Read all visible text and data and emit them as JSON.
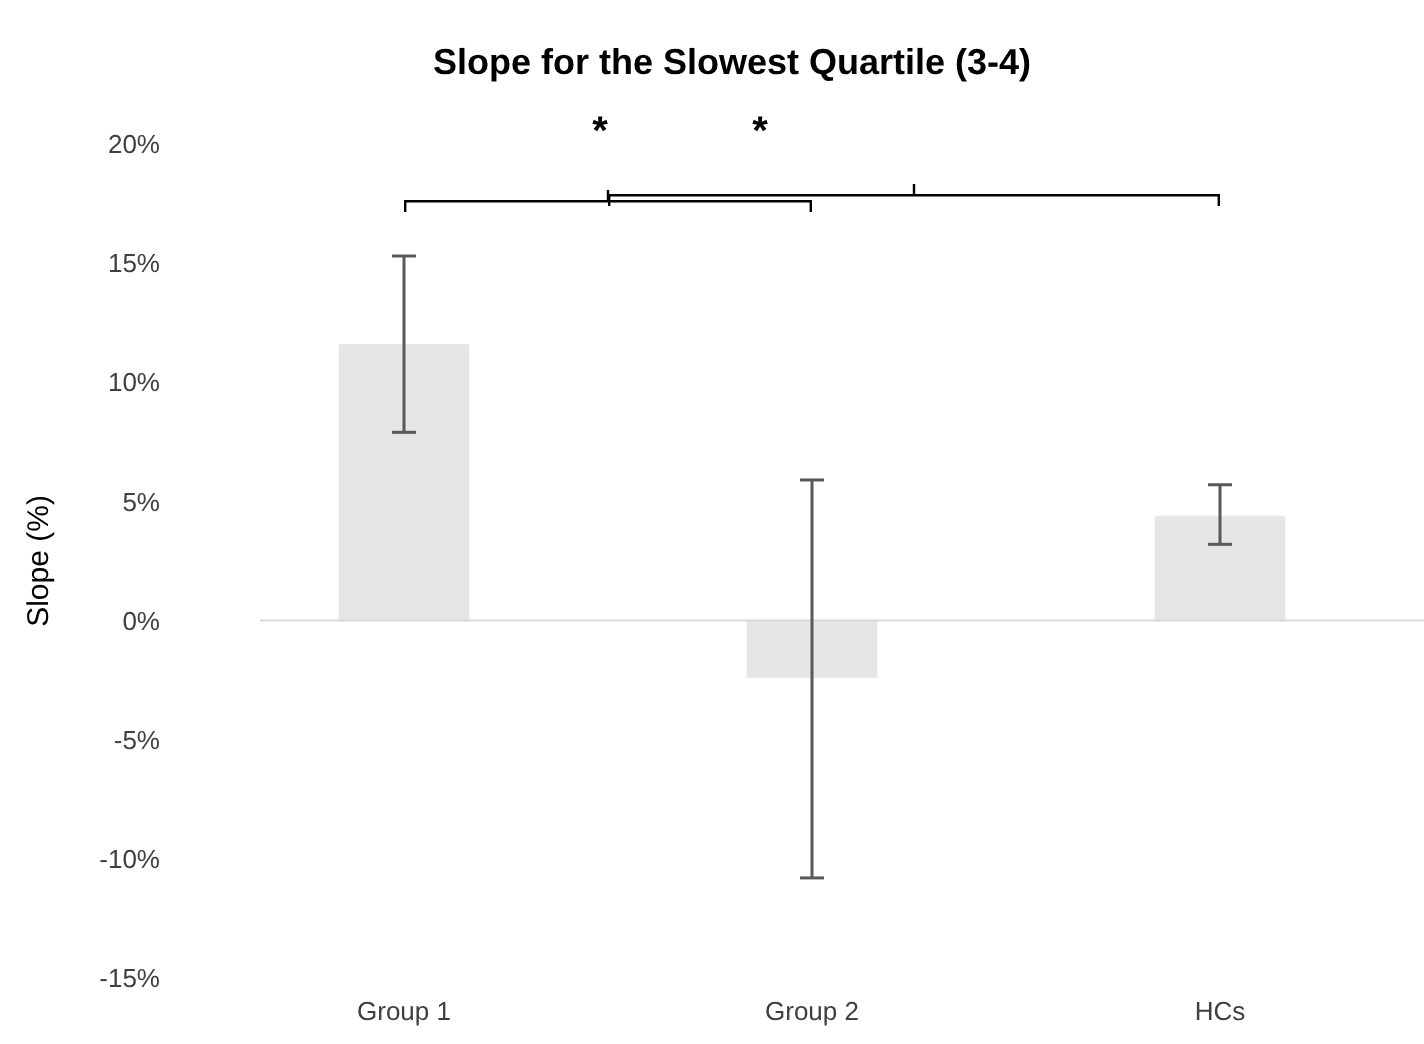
{
  "chart_data": {
    "type": "bar",
    "title": "Slope for the Slowest Quartile (3-4)",
    "ylabel": "Slope (%)",
    "categories": [
      "Group 1",
      "Group 2",
      "HCs"
    ],
    "values": [
      11.6,
      -2.4,
      4.4
    ],
    "errors": [
      [
        7.9,
        15.3
      ],
      [
        -10.8,
        5.9
      ],
      [
        3.2,
        5.7
      ]
    ],
    "color": "#e7e6e6",
    "ylim": [
      -15,
      20
    ],
    "yticks": [
      {
        "value": -15,
        "label": "-15%"
      },
      {
        "value": -10,
        "label": "-10%"
      },
      {
        "value": -5,
        "label": "-5%"
      },
      {
        "value": 0,
        "label": "0%"
      },
      {
        "value": 5,
        "label": "5%"
      },
      {
        "value": 10,
        "label": "10%"
      },
      {
        "value": 15,
        "label": "15%"
      },
      {
        "value": 20,
        "label": "20%"
      }
    ],
    "annotations": [
      "*",
      "*"
    ]
  }
}
